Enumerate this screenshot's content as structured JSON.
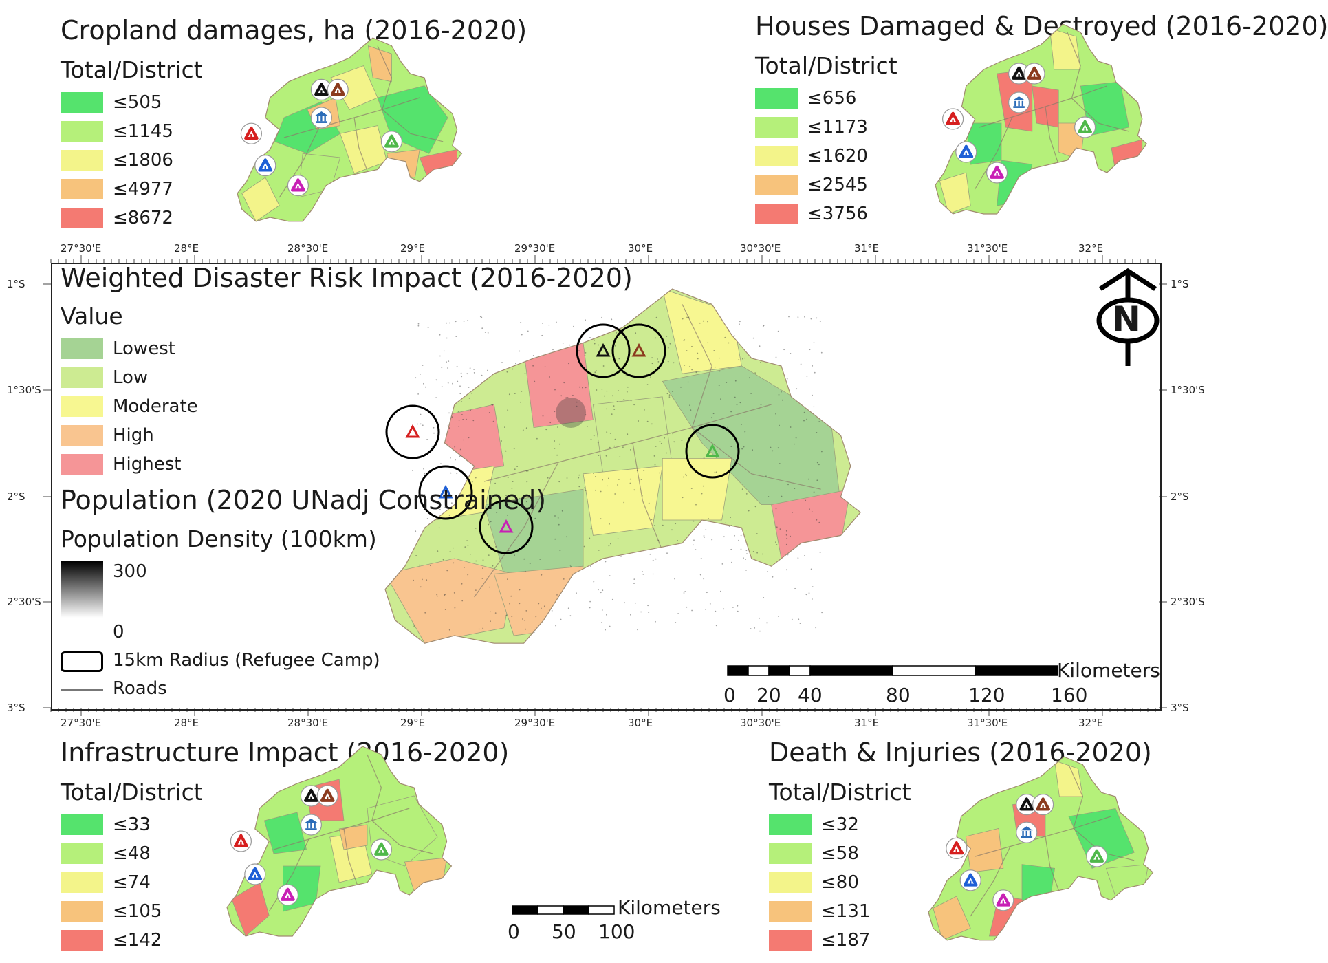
{
  "panels": {
    "cropland": {
      "title": "Cropland damages, ha (2016-2020)",
      "subtitle": "Total/District",
      "legend": [
        {
          "label": "≤505",
          "color": "#55e36d"
        },
        {
          "label": "≤1145",
          "color": "#b5f07a"
        },
        {
          "label": "≤1806",
          "color": "#f3f48a"
        },
        {
          "label": "≤4977",
          "color": "#f7c37c"
        },
        {
          "label": "≤8672",
          "color": "#f47a72"
        }
      ]
    },
    "houses": {
      "title": "Houses Damaged & Destroyed (2016-2020)",
      "subtitle": "Total/District",
      "legend": [
        {
          "label": "≤656",
          "color": "#55e36d"
        },
        {
          "label": "≤1173",
          "color": "#b5f07a"
        },
        {
          "label": "≤1620",
          "color": "#f3f48a"
        },
        {
          "label": "≤2545",
          "color": "#f7c37c"
        },
        {
          "label": "≤3756",
          "color": "#f47a72"
        }
      ]
    },
    "infrastructure": {
      "title": "Infrastructure Impact (2016-2020)",
      "subtitle": "Total/District",
      "legend": [
        {
          "label": "≤33",
          "color": "#55e36d"
        },
        {
          "label": "≤48",
          "color": "#b5f07a"
        },
        {
          "label": "≤74",
          "color": "#f3f48a"
        },
        {
          "label": "≤105",
          "color": "#f7c37c"
        },
        {
          "label": "≤142",
          "color": "#f47a72"
        }
      ]
    },
    "death": {
      "title": "Death & Injuries (2016-2020)",
      "subtitle": "Total/District",
      "legend": [
        {
          "label": "≤32",
          "color": "#55e36d"
        },
        {
          "label": "≤58",
          "color": "#b5f07a"
        },
        {
          "label": "≤80",
          "color": "#f3f48a"
        },
        {
          "label": "≤131",
          "color": "#f7c37c"
        },
        {
          "label": "≤187",
          "color": "#f47a72"
        }
      ]
    }
  },
  "main": {
    "title": "Weighted Disaster Risk Impact (2016-2020)",
    "value_heading": "Value",
    "value_legend": [
      {
        "label": "Lowest",
        "color": "#a5d394"
      },
      {
        "label": "Low",
        "color": "#cdeb92"
      },
      {
        "label": "Moderate",
        "color": "#f7f791"
      },
      {
        "label": "High",
        "color": "#f9c590"
      },
      {
        "label": "Highest",
        "color": "#f59597"
      }
    ],
    "population_heading": "Population (2020 UNadj Constrained)",
    "density_heading": "Population Density (100km)",
    "density_max": "300",
    "density_min": "0",
    "radius_label": "15km Radius (Refugee Camp)",
    "roads_label": "Roads",
    "north_label": "N",
    "scale": {
      "unit": "Kilometers",
      "labels": [
        "0",
        "20",
        "40",
        "80",
        "120",
        "160"
      ]
    }
  },
  "small_scale": {
    "unit": "Kilometers",
    "labels": [
      "0",
      "50",
      "100"
    ]
  },
  "axes": {
    "lon_labels": [
      "27°30'E",
      "28°E",
      "28°30'E",
      "29°E",
      "29°30'E",
      "30°E",
      "30°30'E",
      "31°E",
      "31°30'E",
      "32°E"
    ],
    "lat_labels": [
      "1°S",
      "1°30'S",
      "2°S",
      "2°30'S",
      "3°S"
    ]
  },
  "camp_colors": {
    "black": "#111111",
    "brown": "#8b3a1e",
    "red": "#d61f1f",
    "blue": "#1e5fd6",
    "magenta": "#c81fb5",
    "green": "#4fb84a",
    "museum": "#2b6cb8"
  }
}
